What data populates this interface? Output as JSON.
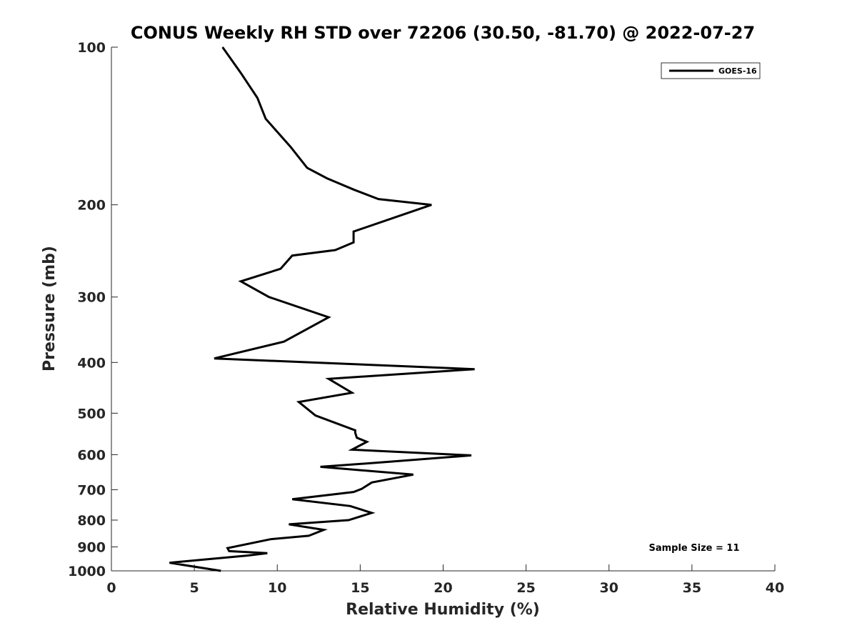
{
  "chart_data": {
    "type": "line",
    "title": "CONUS Weekly RH STD over 72206 (30.50, -81.70) @ 2022-07-27",
    "xlabel": "Relative Humidity (%)",
    "ylabel": "Pressure (mb)",
    "xlim": [
      0,
      40
    ],
    "ylim": [
      100,
      1000
    ],
    "yscale": "log",
    "y_reversed": true,
    "xticks": [
      0,
      5,
      10,
      15,
      20,
      25,
      30,
      35,
      40
    ],
    "yticks": [
      100,
      200,
      300,
      400,
      500,
      600,
      700,
      800,
      900,
      1000
    ],
    "grid": false,
    "legend_position": "top-right",
    "annotation": "Sample Size = 11",
    "series": [
      {
        "name": "GOES-16",
        "color": "#000000",
        "x": [
          6.7,
          7.8,
          8.8,
          9.3,
          10.8,
          11.8,
          13.0,
          14.6,
          16.1,
          19.3,
          14.6,
          14.6,
          13.5,
          10.9,
          10.2,
          7.8,
          9.5,
          13.1,
          10.4,
          6.2,
          21.9,
          13.1,
          14.5,
          11.3,
          12.3,
          14.7,
          14.7,
          14.8,
          15.4,
          14.5,
          21.7,
          16.5,
          12.6,
          18.2,
          15.7,
          15.1,
          14.6,
          10.9,
          14.4,
          15.7,
          14.3,
          10.7,
          12.8,
          11.9,
          9.6,
          7.0,
          7.1,
          9.4,
          8.2,
          3.5,
          6.6
        ],
        "y": [
          100,
          112,
          125,
          137,
          155,
          170,
          178,
          187,
          195,
          200,
          225,
          236,
          244,
          250,
          265,
          280,
          300,
          328,
          365,
          393,
          412,
          430,
          457,
          476,
          505,
          539,
          545,
          557,
          567,
          587,
          602,
          620,
          633,
          655,
          678,
          697,
          707,
          730,
          752,
          775,
          800,
          815,
          835,
          857,
          870,
          905,
          917,
          925,
          935,
          965,
          1000
        ]
      }
    ]
  }
}
